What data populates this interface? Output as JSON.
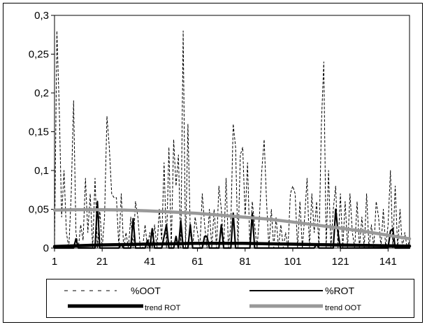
{
  "chart_data": {
    "type": "line",
    "title": "",
    "xlabel": "",
    "ylabel": "",
    "xlim": [
      1,
      150
    ],
    "ylim": [
      0,
      0.3
    ],
    "x_ticks": [
      1,
      21,
      41,
      61,
      81,
      101,
      121,
      141
    ],
    "x_tick_labels": [
      "1",
      "21",
      "41",
      "61",
      "81",
      "101",
      "121",
      "141"
    ],
    "y_ticks": [
      0,
      0.05,
      0.1,
      0.15,
      0.2,
      0.25,
      0.3
    ],
    "y_tick_labels": [
      "0",
      "0,05",
      "0,1",
      "0,15",
      "0,2",
      "0,25",
      "0,3"
    ],
    "grid": false,
    "legend_position": "bottom",
    "series": [
      {
        "name": "%OOT",
        "style": "dashed",
        "color": "#000000",
        "points": [
          [
            1,
            0.0
          ],
          [
            2,
            0.28
          ],
          [
            3,
            0.18
          ],
          [
            4,
            0.04
          ],
          [
            5,
            0.1
          ],
          [
            6,
            0.02
          ],
          [
            7,
            0.0
          ],
          [
            8,
            0.07
          ],
          [
            9,
            0.19
          ],
          [
            10,
            0.02
          ],
          [
            11,
            0.0
          ],
          [
            12,
            0.03
          ],
          [
            13,
            0.01
          ],
          [
            14,
            0.09
          ],
          [
            15,
            0.02
          ],
          [
            16,
            0.07
          ],
          [
            17,
            0.0
          ],
          [
            18,
            0.09
          ],
          [
            19,
            0.0
          ],
          [
            20,
            0.05
          ],
          [
            21,
            0.0
          ],
          [
            22,
            0.04
          ],
          [
            23,
            0.17
          ],
          [
            24,
            0.13
          ],
          [
            25,
            0.07
          ],
          [
            26,
            0.065
          ],
          [
            27,
            0.065
          ],
          [
            28,
            0.0
          ],
          [
            29,
            0.07
          ],
          [
            30,
            0.0
          ],
          [
            31,
            0.02
          ],
          [
            32,
            0.0
          ],
          [
            33,
            0.04
          ],
          [
            34,
            0.0
          ],
          [
            35,
            0.06
          ],
          [
            36,
            0.04
          ],
          [
            37,
            0.0
          ],
          [
            38,
            0.0
          ],
          [
            39,
            0.03
          ],
          [
            40,
            0.0
          ],
          [
            41,
            0.02
          ],
          [
            42,
            0.0
          ],
          [
            43,
            0.03
          ],
          [
            44,
            0.0
          ],
          [
            45,
            0.05
          ],
          [
            46,
            0.01
          ],
          [
            47,
            0.11
          ],
          [
            48,
            0.0
          ],
          [
            49,
            0.13
          ],
          [
            50,
            0.0
          ],
          [
            51,
            0.14
          ],
          [
            52,
            0.08
          ],
          [
            53,
            0.12
          ],
          [
            54,
            0.0
          ],
          [
            55,
            0.28
          ],
          [
            56,
            0.0
          ],
          [
            57,
            0.16
          ],
          [
            58,
            0.02
          ],
          [
            59,
            0.0
          ],
          [
            60,
            0.04
          ],
          [
            61,
            0.02
          ],
          [
            62,
            0.0
          ],
          [
            63,
            0.07
          ],
          [
            64,
            0.03
          ],
          [
            65,
            0.0
          ],
          [
            66,
            0.05
          ],
          [
            67,
            0.0
          ],
          [
            68,
            0.05
          ],
          [
            69,
            0.0
          ],
          [
            70,
            0.08
          ],
          [
            71,
            0.05
          ],
          [
            72,
            0.0
          ],
          [
            73,
            0.09
          ],
          [
            74,
            0.0
          ],
          [
            75,
            0.03
          ],
          [
            76,
            0.16
          ],
          [
            77,
            0.13
          ],
          [
            78,
            0.0
          ],
          [
            79,
            0.12
          ],
          [
            80,
            0.13
          ],
          [
            81,
            0.04
          ],
          [
            82,
            0.11
          ],
          [
            83,
            0.0
          ],
          [
            84,
            0.06
          ],
          [
            85,
            0.03
          ],
          [
            86,
            0.0
          ],
          [
            87,
            0.04
          ],
          [
            88,
            0.1
          ],
          [
            89,
            0.14
          ],
          [
            90,
            0.06
          ],
          [
            91,
            0.0
          ],
          [
            92,
            0.05
          ],
          [
            93,
            0.0
          ],
          [
            94,
            0.04
          ],
          [
            95,
            0.0
          ],
          [
            96,
            0.03
          ],
          [
            97,
            0.0
          ],
          [
            98,
            0.02
          ],
          [
            99,
            0.0
          ],
          [
            100,
            0.07
          ],
          [
            101,
            0.08
          ],
          [
            102,
            0.07
          ],
          [
            103,
            0.0
          ],
          [
            104,
            0.06
          ],
          [
            105,
            0.0
          ],
          [
            106,
            0.04
          ],
          [
            107,
            0.09
          ],
          [
            108,
            0.0
          ],
          [
            109,
            0.07
          ],
          [
            110,
            0.02
          ],
          [
            111,
            0.06
          ],
          [
            112,
            0.0
          ],
          [
            113,
            0.16
          ],
          [
            114,
            0.24
          ],
          [
            115,
            0.0
          ],
          [
            116,
            0.1
          ],
          [
            117,
            0.0
          ],
          [
            118,
            0.05
          ],
          [
            119,
            0.08
          ],
          [
            120,
            0.0
          ],
          [
            121,
            0.07
          ],
          [
            122,
            0.0
          ],
          [
            123,
            0.06
          ],
          [
            124,
            0.0
          ],
          [
            125,
            0.07
          ],
          [
            126,
            0.02
          ],
          [
            127,
            0.0
          ],
          [
            128,
            0.06
          ],
          [
            129,
            0.0
          ],
          [
            130,
            0.04
          ],
          [
            131,
            0.0
          ],
          [
            132,
            0.07
          ],
          [
            133,
            0.0
          ],
          [
            134,
            0.03
          ],
          [
            135,
            0.0
          ],
          [
            136,
            0.06
          ],
          [
            137,
            0.04
          ],
          [
            138,
            0.0
          ],
          [
            139,
            0.05
          ],
          [
            140,
            0.0
          ],
          [
            141,
            0.03
          ],
          [
            142,
            0.1
          ],
          [
            143,
            0.0
          ],
          [
            144,
            0.08
          ],
          [
            145,
            0.0
          ],
          [
            146,
            0.05
          ],
          [
            147,
            0.0
          ],
          [
            148,
            0.02
          ],
          [
            149,
            0.0
          ],
          [
            150,
            0.01
          ]
        ]
      },
      {
        "name": "%ROT",
        "style": "solid",
        "color": "#000000",
        "points": [
          [
            1,
            0.0
          ],
          [
            9,
            0.0
          ],
          [
            10,
            0.012
          ],
          [
            11,
            0.0
          ],
          [
            18,
            0.0
          ],
          [
            19,
            0.06
          ],
          [
            20,
            0.0
          ],
          [
            28,
            0.0
          ],
          [
            29,
            0.005
          ],
          [
            30,
            0.0
          ],
          [
            33,
            0.0
          ],
          [
            34,
            0.038
          ],
          [
            35,
            0.0
          ],
          [
            39,
            0.0
          ],
          [
            40,
            0.01
          ],
          [
            41,
            0.0
          ],
          [
            42,
            0.025
          ],
          [
            43,
            0.0
          ],
          [
            46,
            0.0
          ],
          [
            47,
            0.015
          ],
          [
            48,
            0.03
          ],
          [
            49,
            0.0
          ],
          [
            51,
            0.0
          ],
          [
            52,
            0.015
          ],
          [
            53,
            0.0
          ],
          [
            54,
            0.035
          ],
          [
            55,
            0.0
          ],
          [
            57,
            0.0
          ],
          [
            58,
            0.03
          ],
          [
            59,
            0.0
          ],
          [
            63,
            0.0
          ],
          [
            64,
            0.015
          ],
          [
            65,
            0.015
          ],
          [
            66,
            0.0
          ],
          [
            70,
            0.0
          ],
          [
            71,
            0.03
          ],
          [
            72,
            0.0
          ],
          [
            75,
            0.0
          ],
          [
            76,
            0.045
          ],
          [
            77,
            0.0
          ],
          [
            83,
            0.0
          ],
          [
            84,
            0.045
          ],
          [
            85,
            0.0
          ],
          [
            110,
            0.0
          ],
          [
            111,
            0.005
          ],
          [
            112,
            0.0
          ],
          [
            118,
            0.0
          ],
          [
            119,
            0.05
          ],
          [
            120,
            0.02
          ],
          [
            121,
            0.0
          ],
          [
            141,
            0.0
          ],
          [
            142,
            0.022
          ],
          [
            143,
            0.025
          ],
          [
            144,
            0.0
          ],
          [
            150,
            0.0
          ]
        ]
      },
      {
        "name": "trend ROT",
        "style": "solid-thick",
        "color": "#000000",
        "points": [
          [
            1,
            0.002
          ],
          [
            20,
            0.004
          ],
          [
            40,
            0.005
          ],
          [
            60,
            0.006
          ],
          [
            80,
            0.006
          ],
          [
            100,
            0.005
          ],
          [
            120,
            0.004
          ],
          [
            140,
            0.003
          ],
          [
            150,
            0.0025
          ]
        ]
      },
      {
        "name": "trend OOT",
        "style": "solid-thick",
        "color": "#999999",
        "points": [
          [
            1,
            0.049
          ],
          [
            10,
            0.0495
          ],
          [
            20,
            0.0495
          ],
          [
            30,
            0.049
          ],
          [
            40,
            0.048
          ],
          [
            50,
            0.0465
          ],
          [
            60,
            0.045
          ],
          [
            70,
            0.0425
          ],
          [
            80,
            0.04
          ],
          [
            90,
            0.0375
          ],
          [
            100,
            0.034
          ],
          [
            110,
            0.03
          ],
          [
            120,
            0.026
          ],
          [
            130,
            0.022
          ],
          [
            140,
            0.017
          ],
          [
            150,
            0.012
          ]
        ]
      }
    ]
  }
}
